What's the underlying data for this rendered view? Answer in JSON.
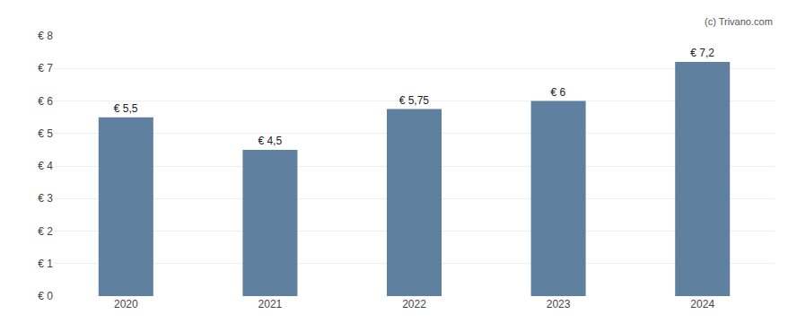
{
  "chart_data": {
    "type": "bar",
    "categories": [
      "2020",
      "2021",
      "2022",
      "2023",
      "2024"
    ],
    "values": [
      5.5,
      4.5,
      5.75,
      6.0,
      7.2
    ],
    "value_labels": [
      "€ 5,5",
      "€ 4,5",
      "€ 5,75",
      "€ 6",
      "€ 7,2"
    ],
    "data_labels": true,
    "color": "#6080a0",
    "ylim": [
      0,
      8
    ],
    "yticks": [
      {
        "value": 0,
        "label": "€ 0"
      },
      {
        "value": 1,
        "label": "€ 1"
      },
      {
        "value": 2,
        "label": "€ 2"
      },
      {
        "value": 3,
        "label": "€ 3"
      },
      {
        "value": 4,
        "label": "€ 4"
      },
      {
        "value": 5,
        "label": "€ 5"
      },
      {
        "value": 6,
        "label": "€ 6"
      },
      {
        "value": 7,
        "label": "€ 7"
      },
      {
        "value": 8,
        "label": "€ 8"
      }
    ],
    "grid": true,
    "annotations": [
      "(c) Trivano.com"
    ]
  }
}
